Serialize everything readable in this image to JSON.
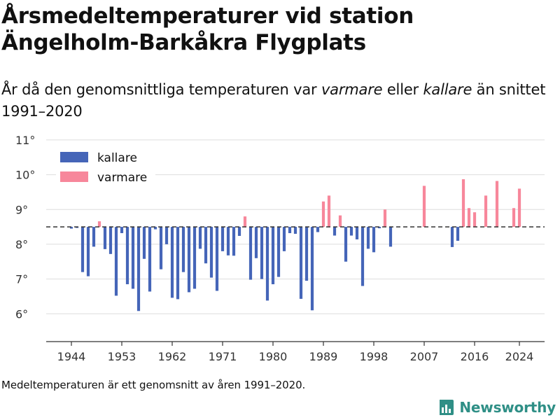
{
  "title": "Årsmedeltemperaturer vid station Ängelholm-Barkåkra Flygplats",
  "subtitle": {
    "before": "År då den genomsnittliga temperaturen var ",
    "warm_word": "varmare",
    "middle": " eller ",
    "cold_word": "kallare",
    "after": " än snittet 1991–2020"
  },
  "footnote": "Medeltemperaturen är ett genomsnitt av åren 1991–2020.",
  "brand": {
    "name": "Newsworthy",
    "icon": "newsworthy-chart-logo-icon",
    "color": "#2f8f86"
  },
  "chart_data": {
    "type": "bar",
    "baseline": 8.5,
    "ylim": [
      5.2,
      11.2
    ],
    "yticks": [
      6,
      7,
      8,
      9,
      10,
      11
    ],
    "ytick_labels": [
      "6°",
      "7°",
      "8°",
      "9°",
      "10°",
      "11°"
    ],
    "xlim": [
      1939.5,
      2028.5
    ],
    "xticks": [
      1944,
      1953,
      1962,
      1971,
      1980,
      1989,
      1998,
      2007,
      2016,
      2024
    ],
    "xtick_labels": [
      "1944",
      "1953",
      "1962",
      "1971",
      "1980",
      "1989",
      "1998",
      "2007",
      "2016",
      "2024"
    ],
    "grid": true,
    "legend_position": "top-left",
    "colors": {
      "kallare": "#4565b8",
      "varmare": "#f7879b",
      "baseline": "#333333",
      "grid": "#dddddd"
    },
    "series": [
      {
        "name": "kallare",
        "color": "#4565b8"
      },
      {
        "name": "varmare",
        "color": "#f7879b"
      }
    ],
    "years": [
      1944,
      1945,
      1946,
      1947,
      1948,
      1949,
      1950,
      1951,
      1952,
      1953,
      1954,
      1955,
      1956,
      1957,
      1958,
      1959,
      1960,
      1961,
      1962,
      1963,
      1964,
      1965,
      1966,
      1967,
      1968,
      1969,
      1970,
      1971,
      1972,
      1973,
      1974,
      1975,
      1976,
      1977,
      1978,
      1979,
      1980,
      1981,
      1982,
      1983,
      1984,
      1985,
      1986,
      1987,
      1988,
      1989,
      1990,
      1991,
      1992,
      1993,
      1994,
      1995,
      1996,
      1997,
      1998,
      1999,
      2000,
      2001,
      2007,
      2012,
      2013,
      2014,
      2015,
      2016,
      2018,
      2020,
      2023,
      2024
    ],
    "values": [
      8.45,
      8.47,
      7.2,
      7.08,
      7.93,
      8.66,
      7.86,
      7.72,
      6.52,
      8.32,
      6.85,
      6.72,
      6.08,
      7.58,
      6.64,
      8.43,
      7.28,
      8.0,
      6.46,
      6.42,
      7.2,
      6.62,
      6.72,
      7.87,
      7.45,
      7.04,
      6.66,
      7.8,
      7.68,
      7.67,
      8.24,
      8.8,
      6.98,
      7.6,
      7.0,
      6.38,
      6.85,
      7.06,
      7.8,
      8.32,
      8.3,
      6.43,
      6.95,
      6.1,
      8.35,
      9.23,
      9.4,
      8.25,
      8.83,
      7.5,
      8.25,
      8.14,
      6.8,
      7.87,
      7.77,
      8.46,
      9.0,
      7.93,
      9.68,
      7.92,
      8.1,
      9.87,
      9.04,
      8.92,
      9.4,
      9.82,
      9.04,
      9.6
    ]
  }
}
